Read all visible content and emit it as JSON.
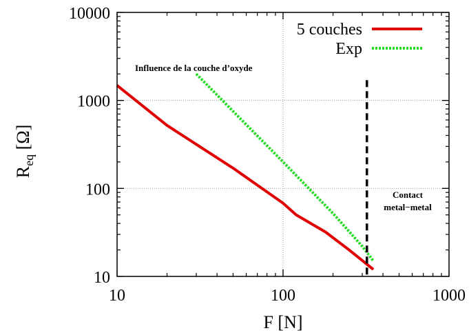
{
  "chart_data": {
    "type": "line",
    "x_scale": "log",
    "y_scale": "log",
    "xlim": [
      10,
      1000
    ],
    "ylim": [
      10,
      10000
    ],
    "grid": true,
    "legend_position": "top-right",
    "xlabel": "F [N]",
    "ylabel_main": "R",
    "ylabel_sub": "eq",
    "ylabel_unit": " [Ω]",
    "x_ticks": [
      "10",
      "100",
      "1000"
    ],
    "x_tick_values": [
      10,
      100,
      1000
    ],
    "y_ticks": [
      "10",
      "100",
      "1000",
      "10000"
    ],
    "y_tick_values": [
      10,
      100,
      1000,
      10000
    ],
    "series": [
      {
        "name": "5 couches",
        "color": "#e00000",
        "style": "solid",
        "x": [
          10,
          20,
          50,
          100,
          120,
          180,
          250,
          350
        ],
        "y": [
          1480,
          520,
          170,
          68,
          50,
          32,
          20,
          12
        ]
      },
      {
        "name": "Exp",
        "color": "#22dd22",
        "style": "dotted",
        "x": [
          30,
          100,
          200,
          300,
          350
        ],
        "y": [
          2000,
          200,
          52,
          22,
          15
        ]
      }
    ],
    "vline": {
      "x": 320,
      "y_top": 1700,
      "color": "#000000",
      "style": "dashed"
    },
    "annotations": [
      {
        "lines": [
          "Influence de la couche d’oxyde"
        ],
        "x": 30,
        "y": 2500
      },
      {
        "lines": [
          "Contact",
          "metal−metal"
        ],
        "x": 650,
        "y": 90
      }
    ]
  }
}
